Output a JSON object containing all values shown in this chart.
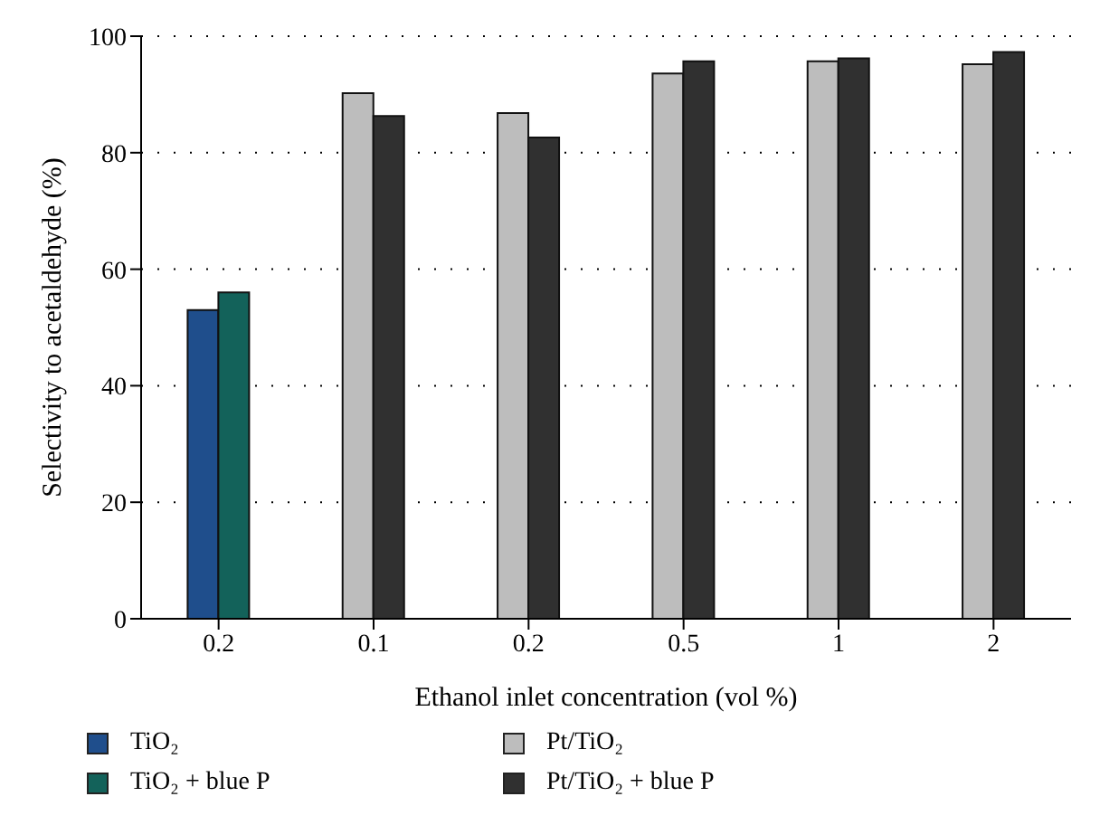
{
  "chart_data": {
    "type": "bar",
    "categories": [
      "0.2",
      "0.1",
      "0.2",
      "0.5",
      "1",
      "2"
    ],
    "xlabel": "Ethanol inlet concentration (vol %)",
    "ylabel": "Selectivity to acetaldehyde (%)",
    "series": [
      {
        "name": "TiO₂",
        "color": "#1f4e8c",
        "values": [
          53,
          null,
          null,
          null,
          null,
          null
        ]
      },
      {
        "name": "TiO₂ + blue P",
        "color": "#13625a",
        "values": [
          56,
          null,
          null,
          null,
          null,
          null
        ]
      },
      {
        "name": "Pt/TiO₂",
        "color": "#bdbdbd",
        "values": [
          null,
          90.2,
          86.8,
          93.6,
          95.7,
          95.2
        ]
      },
      {
        "name": "Pt/TiO₂ + blue P",
        "color": "#303030",
        "values": [
          null,
          86.3,
          82.6,
          95.7,
          96.2,
          97.3
        ]
      }
    ],
    "ylim": [
      0,
      100
    ],
    "yticks": [
      0,
      20,
      40,
      60,
      80,
      100
    ],
    "grid": "y",
    "legend": "bottom"
  }
}
